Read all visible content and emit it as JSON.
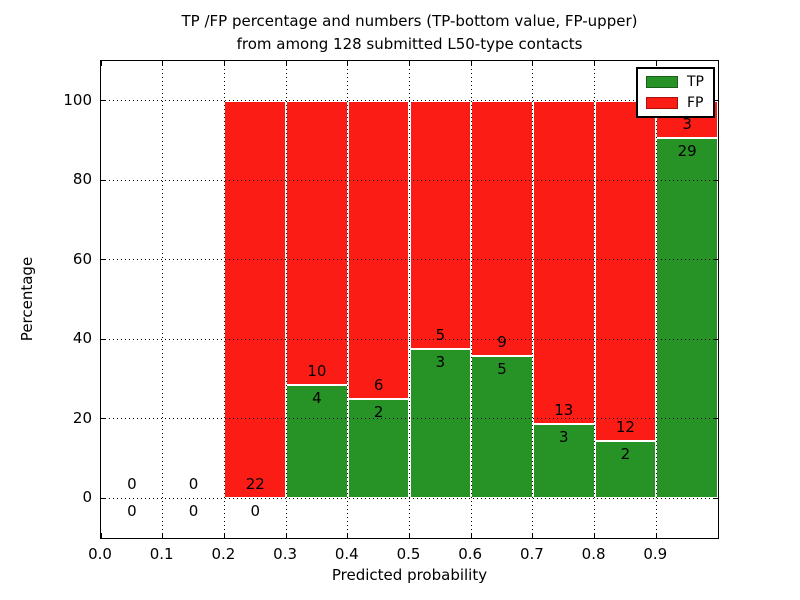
{
  "figure": {
    "title_line1": "TP /FP percentage and numbers (TP-bottom value, FP-upper)",
    "title_line2": "from among 128 submitted L50-type contacts",
    "xlabel": "Predicted probability",
    "ylabel": "Percentage"
  },
  "legend": {
    "items": [
      {
        "label": "TP",
        "color": "#279327"
      },
      {
        "label": "FP",
        "color": "#fb1d15"
      }
    ]
  },
  "chart_data": {
    "type": "bar",
    "stacked": true,
    "title": "TP /FP percentage and numbers (TP-bottom value, FP-upper) from among 128 submitted L50-type contacts",
    "xlabel": "Predicted probability",
    "ylabel": "Percentage",
    "xlim": [
      0.0,
      1.0
    ],
    "ylim": [
      -10,
      110
    ],
    "x_ticks": [
      "0.0",
      "0.1",
      "0.2",
      "0.3",
      "0.4",
      "0.5",
      "0.6",
      "0.7",
      "0.8",
      "0.9"
    ],
    "y_ticks": [
      "0",
      "20",
      "40",
      "60",
      "80",
      "100"
    ],
    "grid": "dotted, drawn above bars",
    "total_contacts": 128,
    "colors": {
      "tp": "#279327",
      "fp": "#fb1d15"
    },
    "series_note": "Each bin stacks TP% (green, bottom) and FP% (red, top) summing to 100%; labels show raw counts (TP below boundary, FP above)",
    "bins": [
      {
        "range": [
          0.0,
          0.1
        ],
        "tp": 0,
        "fp": 0,
        "tp_pct": null,
        "fp_pct": null
      },
      {
        "range": [
          0.1,
          0.2
        ],
        "tp": 0,
        "fp": 0,
        "tp_pct": null,
        "fp_pct": null
      },
      {
        "range": [
          0.2,
          0.3
        ],
        "tp": 0,
        "fp": 22,
        "tp_pct": 0.0,
        "fp_pct": 100.0
      },
      {
        "range": [
          0.3,
          0.4
        ],
        "tp": 4,
        "fp": 10,
        "tp_pct": 28.6,
        "fp_pct": 71.4
      },
      {
        "range": [
          0.4,
          0.5
        ],
        "tp": 2,
        "fp": 6,
        "tp_pct": 25.0,
        "fp_pct": 75.0
      },
      {
        "range": [
          0.5,
          0.6
        ],
        "tp": 3,
        "fp": 5,
        "tp_pct": 37.5,
        "fp_pct": 62.5
      },
      {
        "range": [
          0.6,
          0.7
        ],
        "tp": 5,
        "fp": 9,
        "tp_pct": 35.7,
        "fp_pct": 64.3
      },
      {
        "range": [
          0.7,
          0.8
        ],
        "tp": 3,
        "fp": 13,
        "tp_pct": 18.8,
        "fp_pct": 81.2
      },
      {
        "range": [
          0.8,
          0.9
        ],
        "tp": 2,
        "fp": 12,
        "tp_pct": 14.3,
        "fp_pct": 85.7
      },
      {
        "range": [
          0.9,
          1.0
        ],
        "tp": 29,
        "fp": 3,
        "tp_pct": 90.6,
        "fp_pct": 9.4
      }
    ]
  }
}
